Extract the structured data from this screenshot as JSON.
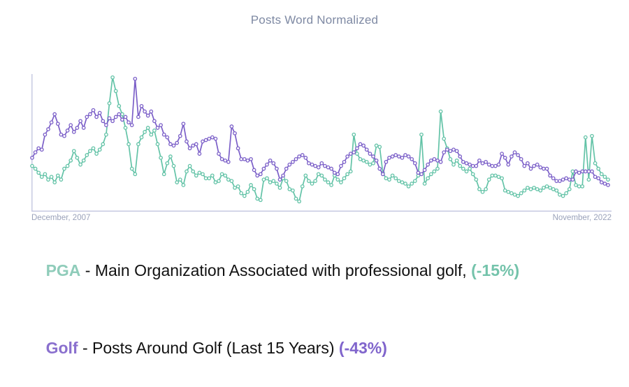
{
  "title": "Posts Word Normalized",
  "colors": {
    "pga_line": "#63c3a7",
    "golf_line": "#7b5fc8",
    "title_text": "#7e89a3",
    "axis_line": "#c7cae2",
    "axis_label_text": "#9aa2ba",
    "marker_fill": "#ffffff"
  },
  "chart_data": {
    "type": "line",
    "title": "Posts Word Normalized",
    "grid": false,
    "legend_position": "below",
    "x_axis": {
      "start_label": "December, 2007",
      "end_label": "November, 2022",
      "unit": "month",
      "points": 180
    },
    "y_axis": {
      "label": "",
      "ticks_visible": false,
      "range": [
        0,
        100
      ],
      "unit": "normalized posts (estimated scale)"
    },
    "series": [
      {
        "name": "PGA",
        "color": "#63c3a7",
        "change_pct": "-15%",
        "values": [
          32,
          30,
          27,
          24,
          26,
          22,
          24,
          20,
          25,
          22,
          30,
          32,
          36,
          43,
          38,
          33,
          36,
          40,
          43,
          45,
          41,
          44,
          48,
          55,
          78,
          97,
          87,
          76,
          70,
          60,
          48,
          30,
          26,
          48,
          53,
          57,
          60,
          55,
          58,
          48,
          38,
          26,
          34,
          39,
          32,
          20,
          22,
          18,
          28,
          32,
          28,
          25,
          27,
          26,
          23,
          23,
          25,
          20,
          21,
          26,
          25,
          22,
          21,
          16,
          17,
          12,
          10,
          13,
          18,
          15,
          8,
          7,
          22,
          23,
          20,
          21,
          19,
          16,
          23,
          21,
          15,
          14,
          8,
          6,
          17,
          25,
          21,
          19,
          21,
          26,
          25,
          22,
          20,
          18,
          25,
          22,
          20,
          23,
          26,
          28,
          55,
          41,
          37,
          36,
          35,
          33,
          34,
          47,
          46,
          27,
          23,
          22,
          25,
          23,
          21,
          20,
          19,
          17,
          19,
          21,
          25,
          55,
          19,
          23,
          26,
          28,
          30,
          72,
          52,
          45,
          37,
          33,
          36,
          32,
          30,
          28,
          30,
          26,
          22,
          15,
          13,
          15,
          22,
          25,
          25,
          24,
          23,
          14,
          13,
          12,
          11,
          10,
          12,
          14,
          16,
          15,
          16,
          15,
          14,
          16,
          17,
          16,
          15,
          14,
          11,
          10,
          12,
          15,
          28,
          18,
          17,
          17,
          53,
          22,
          54,
          34,
          30,
          26,
          24,
          22
        ]
      },
      {
        "name": "Golf",
        "color": "#7b5fc8",
        "change_pct": "-43%",
        "values": [
          38,
          42,
          45,
          44,
          55,
          59,
          64,
          70,
          63,
          55,
          54,
          58,
          62,
          57,
          60,
          65,
          60,
          68,
          70,
          73,
          68,
          71,
          65,
          62,
          67,
          65,
          68,
          70,
          66,
          68,
          64,
          62,
          96,
          68,
          76,
          72,
          69,
          72,
          65,
          60,
          62,
          55,
          53,
          48,
          47,
          49,
          54,
          63,
          50,
          45,
          47,
          48,
          41,
          50,
          51,
          52,
          53,
          52,
          41,
          37,
          36,
          35,
          61,
          56,
          45,
          37,
          37,
          36,
          37,
          29,
          25,
          26,
          30,
          33,
          36,
          34,
          30,
          22,
          25,
          30,
          33,
          35,
          37,
          39,
          40,
          38,
          34,
          33,
          32,
          31,
          34,
          32,
          31,
          30,
          27,
          26,
          32,
          35,
          39,
          41,
          42,
          45,
          48,
          47,
          44,
          41,
          39,
          36,
          30,
          26,
          35,
          38,
          39,
          40,
          39,
          38,
          40,
          39,
          37,
          34,
          27,
          26,
          29,
          33,
          36,
          37,
          36,
          35,
          42,
          44,
          43,
          44,
          43,
          39,
          35,
          34,
          33,
          32,
          32,
          36,
          34,
          35,
          33,
          32,
          32,
          33,
          41,
          38,
          33,
          39,
          42,
          40,
          37,
          32,
          34,
          30,
          32,
          33,
          31,
          30,
          30,
          25,
          23,
          21,
          21,
          22,
          23,
          22,
          22,
          28,
          27,
          28,
          28,
          28,
          28,
          24,
          23,
          20,
          19,
          18
        ]
      }
    ]
  },
  "legend": {
    "items": [
      {
        "term": "PGA",
        "separator": " - ",
        "description": "Main Organization Associated with professional golf, ",
        "change": "(-15%)"
      },
      {
        "term": "Golf",
        "separator": " - ",
        "description": "Posts Around Golf (Last 15 Years) ",
        "change": "(-43%)"
      }
    ]
  }
}
